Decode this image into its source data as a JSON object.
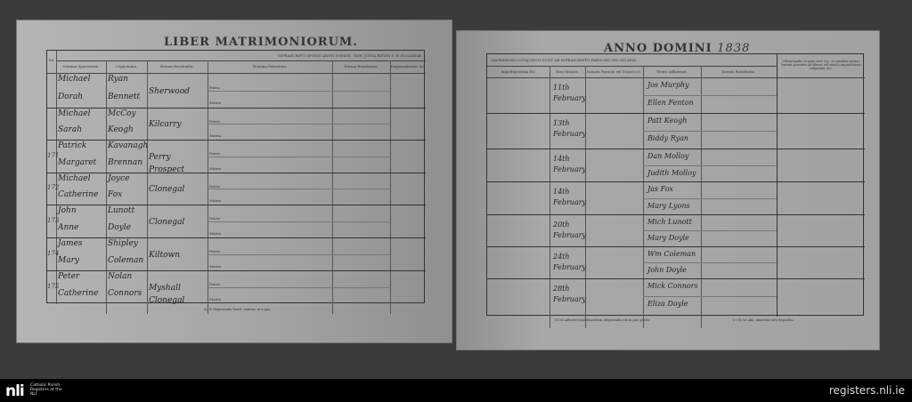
{
  "left_page": {
    "title": "LIBER MATRIMONIORUM.",
    "subheader": "INFRASCRIPTI SPONSI ANNO DOMINI, 1838, JUXTA RITUM S. R. ECCLESIÆ",
    "columns": [
      "No.",
      "Nomina Sponsorum.",
      "Cognomina.",
      "Eorum Residentia.",
      "Nomina Parentum.",
      "Eorum Residentia.",
      "Dispensationes (a)."
    ],
    "entries": [
      {
        "no": "",
        "groom": "Michael",
        "groom_surname": "Ryan",
        "bride": "Dorah",
        "bride_surname": "Bennett",
        "residence": "Sherwood"
      },
      {
        "no": "",
        "groom": "Michael",
        "groom_surname": "McCoy",
        "bride": "Sarah",
        "bride_surname": "Keogh",
        "residence": "Kilcarry"
      },
      {
        "no": "171",
        "groom": "Patrick",
        "groom_surname": "Kavanagh",
        "bride": "Margaret",
        "bride_surname": "Brennan",
        "residence": "Perry Prospect"
      },
      {
        "no": "172",
        "groom": "Michael",
        "groom_surname": "Joyce",
        "bride": "Catherine",
        "bride_surname": "Fox",
        "residence": "Clonegal"
      },
      {
        "no": "173",
        "groom": "John",
        "groom_surname": "Lunott",
        "bride": "Anne",
        "bride_surname": "Doyle",
        "residence": "Clonegal"
      },
      {
        "no": "174",
        "groom": "James",
        "groom_surname": "Shipley",
        "bride": "Mary",
        "bride_surname": "Coleman",
        "residence": "Kiltown"
      },
      {
        "no": "175",
        "groom": "Peter",
        "groom_surname": "Nolan",
        "bride": "Catherine",
        "bride_surname": "Connors",
        "residence": "Myshall Clonegal"
      }
    ],
    "footnote": "(a) Si Dispensatio fuerit, notetur, ut a quo."
  },
  "right_page": {
    "title": "ANNO DOMINI",
    "year": "1838",
    "subheader": "MATRIMONIO CONJUNCTI SUNT AB INFRASCRIPTO PAROCHO VEL VICARIO.",
    "columns": [
      "Impedimentum (b).",
      "Dies Mensis.",
      "Nomen Parochi vel Vicarii (c).",
      "Testes adfuerunt.",
      "Eorum Residentia.",
      "Observanda, si quae sint: v.g., si ejusdem sponsi fuerint parentes ad filium, vel simul conjunctiones religionis, etc."
    ],
    "entries": [
      {
        "date": "11th February",
        "witnesses": [
          "Jos Murphy",
          "Ellen Fenton"
        ]
      },
      {
        "date": "13th February",
        "witnesses": [
          "Patt Keogh",
          "Biddy Ryan"
        ]
      },
      {
        "date": "14th February",
        "witnesses": [
          "Dan Molloy",
          "Judith Molloy"
        ]
      },
      {
        "date": "14th February",
        "witnesses": [
          "Jas Fox",
          "Mary Lyons"
        ]
      },
      {
        "date": "20th February",
        "witnesses": [
          "Mich Lunott",
          "Mary Doyle"
        ]
      },
      {
        "date": "24th February",
        "witnesses": [
          "Wm Coleman",
          "John Doyle"
        ]
      },
      {
        "date": "28th February",
        "witnesses": [
          "Mick Connors",
          "Eliza Doyle"
        ]
      }
    ],
    "footnote_left": "(b) Si adfuerit Impedimentum, dispensatio est in pari posita.",
    "footnote_right": "(c) Si est alio, innotetur sive depositio."
  },
  "footer": {
    "logo": "nli",
    "logo_caption": "Catholic Parish Registers at the NLI",
    "site": "registers.nli.ie"
  }
}
